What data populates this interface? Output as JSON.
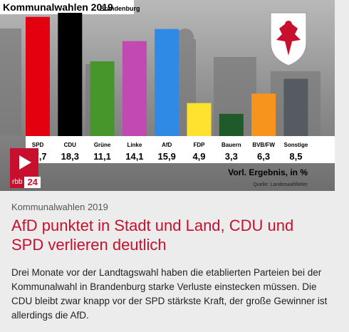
{
  "chart_data": {
    "type": "bar",
    "title": "Kommunalwahlen 2019",
    "subtitle": "Brandenburg",
    "categories": [
      "SPD",
      "CDU",
      "Grüne",
      "Linke",
      "AfD",
      "FDP",
      "Bauern",
      "BVB/FW",
      "Sonstige"
    ],
    "value_labels": [
      "17,7",
      "18,3",
      "11,1",
      "14,1",
      "15,9",
      "4,9",
      "3,3",
      "6,3",
      "8,5"
    ],
    "values": [
      17.7,
      18.3,
      11.1,
      14.1,
      15.9,
      4.9,
      3.3,
      6.3,
      8.5
    ],
    "colors": [
      "#e3000f",
      "#000000",
      "#46962b",
      "#c04ab2",
      "#2f8ae6",
      "#ffe12e",
      "#1e5a2a",
      "#f7941d",
      "#555b60"
    ],
    "ylim": [
      0,
      18.3
    ],
    "footer_label": "Vorl. Ergebnis, in %",
    "source": "Quelle: Landeswahlleiter"
  },
  "media": {
    "logo_rbb": "rbb",
    "logo_num": "24"
  },
  "article": {
    "kicker": "Kommunalwahlen 2019",
    "headline": "AfD punktet in Stadt und Land, CDU und SPD verlieren deutlich",
    "teaser": "Drei Monate vor der Landtagswahl haben die etablierten Parteien bei der Kommunalwahl in Brandenburg starke Verluste einstecken müssen. Die CDU bleibt zwar knapp vor der SPD stärkste Kraft, der große Gewinner ist allerdings die AfD."
  }
}
